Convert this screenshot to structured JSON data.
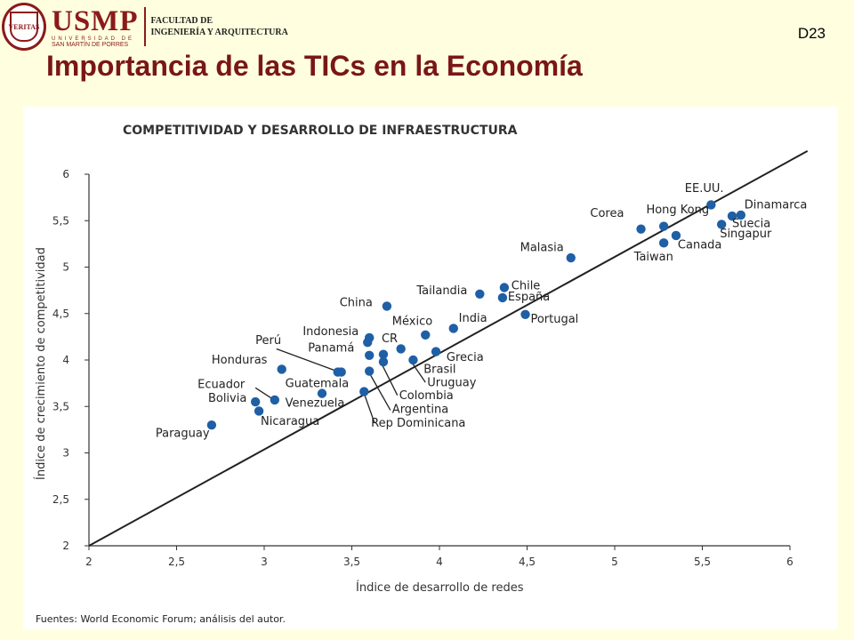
{
  "header": {
    "seal_text": "VERITAS",
    "logo_word": "USMP",
    "logo_line1": "UNIVERSIDAD DE",
    "logo_line2": "SAN MARTÍN DE PORRES",
    "faculty_line1": "FACULTAD DE",
    "faculty_line2": "INGENIERÍA Y ARQUITECTURA",
    "slide_code": "D23",
    "title": "Importancia de las TICs en la Economía"
  },
  "colors": {
    "title": "#7a1616",
    "point": "#1f5fa6",
    "line": "#222222",
    "background": "#ffffe0"
  },
  "chart_data": {
    "type": "scatter",
    "title": "COMPETITIVIDAD Y DESARROLLO DE INFRAESTRUCTURA",
    "xlabel": "Índice de desarrollo de redes",
    "ylabel": "Índice de crecimiento de competitividad",
    "xlim": [
      2,
      6
    ],
    "ylim": [
      2,
      6
    ],
    "xticks": [
      "2",
      "2,5",
      "3",
      "3,5",
      "4",
      "4,5",
      "5",
      "5,5",
      "6"
    ],
    "yticks": [
      "2",
      "2,5",
      "3",
      "3,5",
      "4",
      "4,5",
      "5",
      "5,5",
      "6"
    ],
    "grid": false,
    "reference_line": {
      "from": [
        2,
        2
      ],
      "to": [
        6.1,
        6.25
      ]
    },
    "source": "Fuentes: World Economic Forum; análisis del autor.",
    "points": [
      {
        "label": "Paraguay",
        "x": 2.7,
        "y": 3.3
      },
      {
        "label": "Bolivia",
        "x": 2.95,
        "y": 3.55
      },
      {
        "label": "Nicaragua",
        "x": 2.97,
        "y": 3.45
      },
      {
        "label": "Ecuador",
        "x": 3.06,
        "y": 3.57
      },
      {
        "label": "Honduras",
        "x": 3.1,
        "y": 3.9
      },
      {
        "label": "Venezuela",
        "x": 3.33,
        "y": 3.64
      },
      {
        "label": "Perú",
        "x": 3.42,
        "y": 3.87
      },
      {
        "label": "Guatemala",
        "x": 3.44,
        "y": 3.87
      },
      {
        "label": "Rep Dominicana",
        "x": 3.57,
        "y": 3.66
      },
      {
        "label": "Indonesia",
        "x": 3.59,
        "y": 4.19
      },
      {
        "label": "",
        "x": 3.6,
        "y": 4.24
      },
      {
        "label": "Panamá",
        "x": 3.6,
        "y": 4.05
      },
      {
        "label": "Argentina",
        "x": 3.6,
        "y": 3.88
      },
      {
        "label": "Colombia",
        "x": 3.68,
        "y": 3.98
      },
      {
        "label": "CR",
        "x": 3.68,
        "y": 4.06
      },
      {
        "label": "China",
        "x": 3.7,
        "y": 4.58
      },
      {
        "label": "",
        "x": 3.78,
        "y": 4.12
      },
      {
        "label": "Uruguay",
        "x": 3.85,
        "y": 4.0
      },
      {
        "label": "México",
        "x": 3.92,
        "y": 4.27
      },
      {
        "label": "Brasil",
        "x": 3.98,
        "y": 4.09
      },
      {
        "label": "India",
        "x": 4.08,
        "y": 4.34
      },
      {
        "label": "Tailandia",
        "x": 4.23,
        "y": 4.71
      },
      {
        "label": "Chile",
        "x": 4.37,
        "y": 4.78
      },
      {
        "label": "España",
        "x": 4.36,
        "y": 4.67
      },
      {
        "label": "Portugal",
        "x": 4.49,
        "y": 4.49
      },
      {
        "label": "Malasia",
        "x": 4.75,
        "y": 5.1
      },
      {
        "label": "Corea",
        "x": 5.15,
        "y": 5.41
      },
      {
        "label": "Hong Kong",
        "x": 5.28,
        "y": 5.44
      },
      {
        "label": "Taiwan",
        "x": 5.28,
        "y": 5.26
      },
      {
        "label": "Canada",
        "x": 5.35,
        "y": 5.34
      },
      {
        "label": "EE.UU.",
        "x": 5.55,
        "y": 5.67
      },
      {
        "label": "Singapur",
        "x": 5.61,
        "y": 5.46
      },
      {
        "label": "Suecia",
        "x": 5.67,
        "y": 5.55
      },
      {
        "label": "Dinamarca",
        "x": 5.72,
        "y": 5.56
      }
    ],
    "labels": [
      {
        "text": "Paraguay",
        "lx": 2.38,
        "ly": 3.17
      },
      {
        "text": "Bolivia",
        "lx": 2.68,
        "ly": 3.55
      },
      {
        "text": "Nicaragua",
        "lx": 2.98,
        "ly": 3.3
      },
      {
        "text": "Ecuador",
        "lx": 2.62,
        "ly": 3.7,
        "leader": [
          2.95,
          3.7,
          3.04,
          3.59
        ]
      },
      {
        "text": "Honduras",
        "lx": 2.7,
        "ly": 3.96
      },
      {
        "text": "Venezuela",
        "lx": 3.12,
        "ly": 3.5
      },
      {
        "text": "Guatemala",
        "lx": 3.12,
        "ly": 3.71
      },
      {
        "text": "Perú",
        "lx": 2.95,
        "ly": 4.17,
        "leader": [
          3.07,
          4.12,
          3.4,
          3.89
        ]
      },
      {
        "text": "Indonesia",
        "lx": 3.22,
        "ly": 4.27
      },
      {
        "text": "Panamá",
        "lx": 3.25,
        "ly": 4.09
      },
      {
        "text": "CR",
        "lx": 3.67,
        "ly": 4.19
      },
      {
        "text": "China",
        "lx": 3.43,
        "ly": 4.58
      },
      {
        "text": "México",
        "lx": 3.73,
        "ly": 4.38
      },
      {
        "text": "India",
        "lx": 4.11,
        "ly": 4.41
      },
      {
        "text": "Tailandia",
        "lx": 3.87,
        "ly": 4.71
      },
      {
        "text": "Chile",
        "lx": 4.41,
        "ly": 4.76
      },
      {
        "text": "España",
        "lx": 4.39,
        "ly": 4.64
      },
      {
        "text": "Portugal",
        "lx": 4.52,
        "ly": 4.4
      },
      {
        "text": "Grecia",
        "lx": 4.04,
        "ly": 3.99
      },
      {
        "text": "Brasil",
        "lx": 3.91,
        "ly": 3.86
      },
      {
        "text": "Uruguay",
        "lx": 3.93,
        "ly": 3.72,
        "leader": [
          3.92,
          3.76,
          3.84,
          3.98
        ]
      },
      {
        "text": "Colombia",
        "lx": 3.77,
        "ly": 3.58,
        "leader": [
          3.76,
          3.62,
          3.67,
          3.96
        ]
      },
      {
        "text": "Argentina",
        "lx": 3.73,
        "ly": 3.43,
        "leader": [
          3.72,
          3.46,
          3.6,
          3.86
        ]
      },
      {
        "text": "Rep Dominicana",
        "lx": 3.61,
        "ly": 3.28,
        "leader": [
          3.63,
          3.32,
          3.57,
          3.64
        ]
      },
      {
        "text": "Malasia",
        "lx": 4.46,
        "ly": 5.17
      },
      {
        "text": "Corea",
        "lx": 4.86,
        "ly": 5.54
      },
      {
        "text": "Hong Kong",
        "lx": 5.18,
        "ly": 5.58
      },
      {
        "text": "Taiwan",
        "lx": 5.11,
        "ly": 5.07
      },
      {
        "text": "Canada",
        "lx": 5.36,
        "ly": 5.2
      },
      {
        "text": "EE.UU.",
        "lx": 5.4,
        "ly": 5.81
      },
      {
        "text": "Dinamarca",
        "lx": 5.74,
        "ly": 5.63
      },
      {
        "text": "Suecia",
        "lx": 5.67,
        "ly": 5.43
      },
      {
        "text": "Singapur",
        "lx": 5.6,
        "ly": 5.32
      }
    ]
  }
}
